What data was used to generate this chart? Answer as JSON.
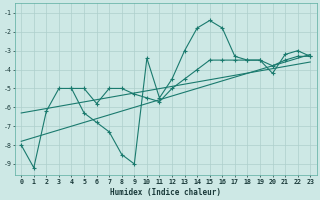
{
  "xlabel": "Humidex (Indice chaleur)",
  "bg_color": "#cde8e5",
  "line_color": "#1a7a6e",
  "grid_color": "#aecfcc",
  "xlim": [
    -0.5,
    23.5
  ],
  "ylim": [
    -9.6,
    -0.5
  ],
  "yticks": [
    -9,
    -8,
    -7,
    -6,
    -5,
    -4,
    -3,
    -2,
    -1
  ],
  "xticks": [
    0,
    1,
    2,
    3,
    4,
    5,
    6,
    7,
    8,
    9,
    10,
    11,
    12,
    13,
    14,
    15,
    16,
    17,
    18,
    19,
    20,
    21,
    22,
    23
  ],
  "s1_x": [
    0,
    1,
    2,
    3,
    4,
    5,
    6,
    7,
    8,
    9,
    10,
    11,
    12,
    13,
    14,
    15,
    16,
    17,
    18,
    19,
    20,
    21,
    22,
    23
  ],
  "s1_y": [
    -8.0,
    -9.2,
    -6.2,
    -5.0,
    -5.0,
    -6.3,
    -6.8,
    -7.3,
    -8.5,
    -9.0,
    -3.4,
    -5.5,
    -4.5,
    -3.0,
    -1.8,
    -1.4,
    -1.8,
    -3.3,
    -3.5,
    -3.5,
    -4.2,
    -3.2,
    -3.0,
    -3.3
  ],
  "s2_x": [
    4,
    5,
    6,
    7,
    8,
    9,
    10,
    11,
    12,
    13,
    14,
    15,
    16,
    17,
    18,
    19,
    20,
    21,
    22,
    23
  ],
  "s2_y": [
    -5.0,
    -5.0,
    -5.8,
    -5.0,
    -5.0,
    -5.3,
    -5.5,
    -5.7,
    -5.0,
    -4.5,
    -4.0,
    -3.5,
    -3.5,
    -3.5,
    -3.5,
    -3.5,
    -3.8,
    -3.5,
    -3.3,
    -3.3
  ],
  "trend1_x": [
    0,
    23
  ],
  "trend1_y": [
    -7.8,
    -3.2
  ],
  "trend2_x": [
    0,
    23
  ],
  "trend2_y": [
    -6.3,
    -3.6
  ]
}
